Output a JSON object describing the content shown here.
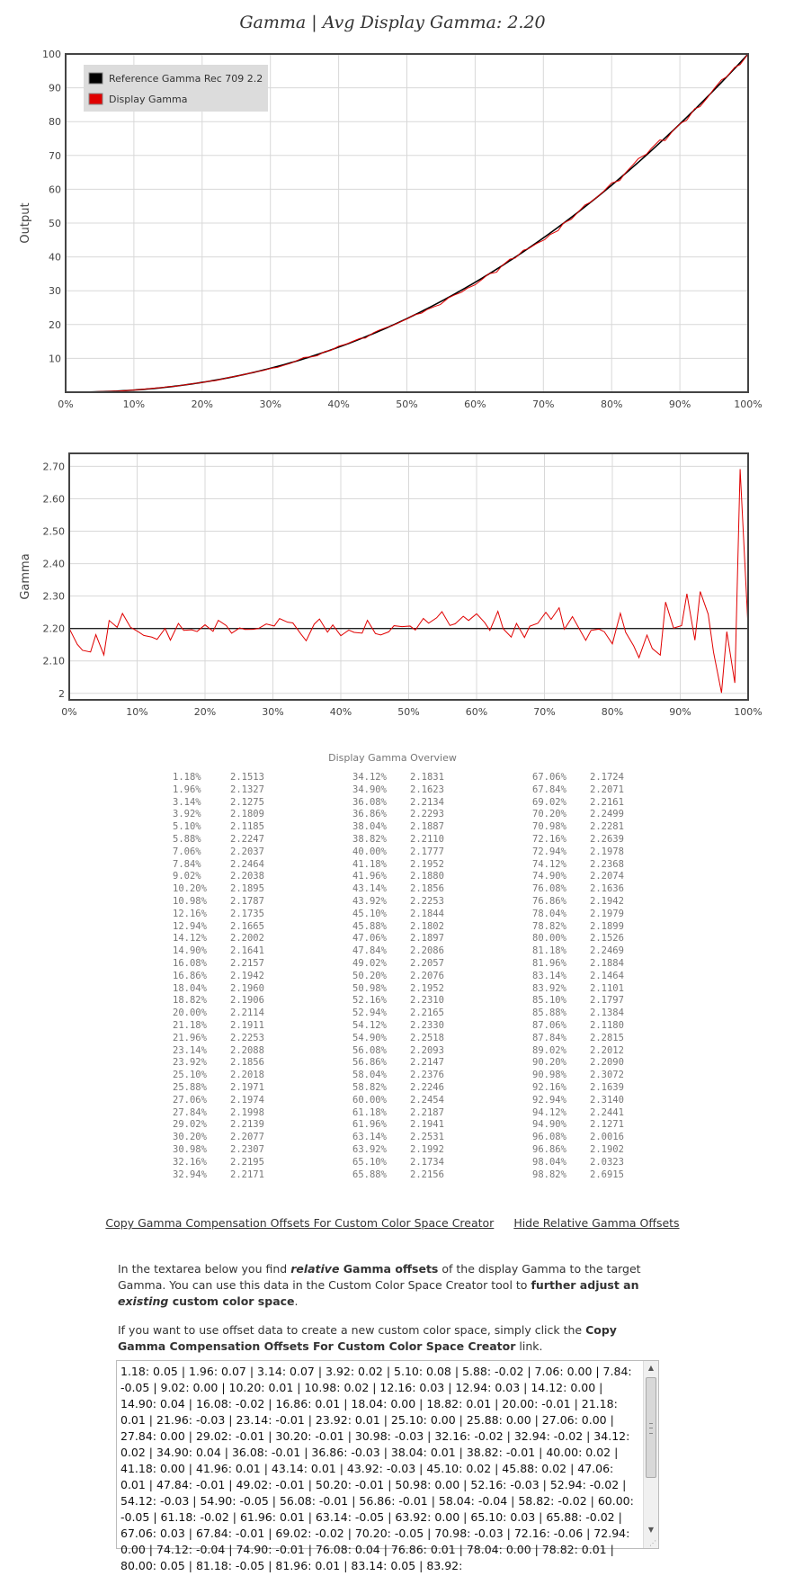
{
  "chart_data": [
    {
      "type": "line",
      "title": "Gamma | Avg Display Gamma: 2.20",
      "xlabel": "",
      "ylabel": "Output",
      "x_ticks": [
        "0%",
        "10%",
        "20%",
        "30%",
        "40%",
        "50%",
        "60%",
        "70%",
        "80%",
        "90%",
        "100%"
      ],
      "y_ticks": [
        "10",
        "20",
        "30",
        "40",
        "50",
        "60",
        "70",
        "80",
        "90",
        "100"
      ],
      "xlim": [
        0,
        100
      ],
      "ylim": [
        0,
        100
      ],
      "grid": true,
      "legend_position": "top-left",
      "series": [
        {
          "name": "Reference Gamma Rec 709 2.2",
          "color": "#000000",
          "function": "100*(x/100)^2.2"
        },
        {
          "name": "Display Gamma",
          "color": "#e00000",
          "source": "gamma_overview"
        }
      ]
    },
    {
      "type": "line",
      "xlabel": "",
      "ylabel": "Gamma",
      "x_ticks": [
        "0%",
        "10%",
        "20%",
        "30%",
        "40%",
        "50%",
        "60%",
        "70%",
        "80%",
        "90%",
        "100%"
      ],
      "y_ticks": [
        "2",
        "2.10",
        "2.20",
        "2.30",
        "2.40",
        "2.50",
        "2.60",
        "2.70"
      ],
      "xlim": [
        0,
        100
      ],
      "ylim": [
        1.98,
        2.74
      ],
      "reference_line": 2.2,
      "grid": true,
      "series": [
        {
          "color": "#e00000",
          "source": "gamma_overview",
          "start": [
            0,
            2.2
          ],
          "end": [
            100,
            2.2
          ]
        }
      ]
    }
  ],
  "overview": {
    "title": "Display Gamma Overview",
    "rows": [
      [
        "1.18%",
        "2.1513"
      ],
      [
        "1.96%",
        "2.1327"
      ],
      [
        "3.14%",
        "2.1275"
      ],
      [
        "3.92%",
        "2.1809"
      ],
      [
        "5.10%",
        "2.1185"
      ],
      [
        "5.88%",
        "2.2247"
      ],
      [
        "7.06%",
        "2.2037"
      ],
      [
        "7.84%",
        "2.2464"
      ],
      [
        "9.02%",
        "2.2038"
      ],
      [
        "10.20%",
        "2.1895"
      ],
      [
        "10.98%",
        "2.1787"
      ],
      [
        "12.16%",
        "2.1735"
      ],
      [
        "12.94%",
        "2.1665"
      ],
      [
        "14.12%",
        "2.2002"
      ],
      [
        "14.90%",
        "2.1641"
      ],
      [
        "16.08%",
        "2.2157"
      ],
      [
        "16.86%",
        "2.1942"
      ],
      [
        "18.04%",
        "2.1960"
      ],
      [
        "18.82%",
        "2.1906"
      ],
      [
        "20.00%",
        "2.2114"
      ],
      [
        "21.18%",
        "2.1911"
      ],
      [
        "21.96%",
        "2.2253"
      ],
      [
        "23.14%",
        "2.2088"
      ],
      [
        "23.92%",
        "2.1856"
      ],
      [
        "25.10%",
        "2.2018"
      ],
      [
        "25.88%",
        "2.1971"
      ],
      [
        "27.06%",
        "2.1974"
      ],
      [
        "27.84%",
        "2.1998"
      ],
      [
        "29.02%",
        "2.2139"
      ],
      [
        "30.20%",
        "2.2077"
      ],
      [
        "30.98%",
        "2.2307"
      ],
      [
        "32.16%",
        "2.2195"
      ],
      [
        "32.94%",
        "2.2171"
      ],
      [
        "34.12%",
        "2.1831"
      ],
      [
        "34.90%",
        "2.1623"
      ],
      [
        "36.08%",
        "2.2134"
      ],
      [
        "36.86%",
        "2.2293"
      ],
      [
        "38.04%",
        "2.1887"
      ],
      [
        "38.82%",
        "2.2110"
      ],
      [
        "40.00%",
        "2.1777"
      ],
      [
        "41.18%",
        "2.1952"
      ],
      [
        "41.96%",
        "2.1880"
      ],
      [
        "43.14%",
        "2.1856"
      ],
      [
        "43.92%",
        "2.2253"
      ],
      [
        "45.10%",
        "2.1844"
      ],
      [
        "45.88%",
        "2.1802"
      ],
      [
        "47.06%",
        "2.1897"
      ],
      [
        "47.84%",
        "2.2086"
      ],
      [
        "49.02%",
        "2.2057"
      ],
      [
        "50.20%",
        "2.2076"
      ],
      [
        "50.98%",
        "2.1952"
      ],
      [
        "52.16%",
        "2.2310"
      ],
      [
        "52.94%",
        "2.2165"
      ],
      [
        "54.12%",
        "2.2330"
      ],
      [
        "54.90%",
        "2.2518"
      ],
      [
        "56.08%",
        "2.2093"
      ],
      [
        "56.86%",
        "2.2147"
      ],
      [
        "58.04%",
        "2.2376"
      ],
      [
        "58.82%",
        "2.2246"
      ],
      [
        "60.00%",
        "2.2454"
      ],
      [
        "61.18%",
        "2.2187"
      ],
      [
        "61.96%",
        "2.1941"
      ],
      [
        "63.14%",
        "2.2531"
      ],
      [
        "63.92%",
        "2.1992"
      ],
      [
        "65.10%",
        "2.1734"
      ],
      [
        "65.88%",
        "2.2156"
      ],
      [
        "67.06%",
        "2.1724"
      ],
      [
        "67.84%",
        "2.2071"
      ],
      [
        "69.02%",
        "2.2161"
      ],
      [
        "70.20%",
        "2.2499"
      ],
      [
        "70.98%",
        "2.2281"
      ],
      [
        "72.16%",
        "2.2639"
      ],
      [
        "72.94%",
        "2.1978"
      ],
      [
        "74.12%",
        "2.2368"
      ],
      [
        "74.90%",
        "2.2074"
      ],
      [
        "76.08%",
        "2.1636"
      ],
      [
        "76.86%",
        "2.1942"
      ],
      [
        "78.04%",
        "2.1979"
      ],
      [
        "78.82%",
        "2.1899"
      ],
      [
        "80.00%",
        "2.1526"
      ],
      [
        "81.18%",
        "2.2469"
      ],
      [
        "81.96%",
        "2.1884"
      ],
      [
        "83.14%",
        "2.1464"
      ],
      [
        "83.92%",
        "2.1101"
      ],
      [
        "85.10%",
        "2.1797"
      ],
      [
        "85.88%",
        "2.1384"
      ],
      [
        "87.06%",
        "2.1180"
      ],
      [
        "87.84%",
        "2.2815"
      ],
      [
        "89.02%",
        "2.2012"
      ],
      [
        "90.20%",
        "2.2090"
      ],
      [
        "90.98%",
        "2.3072"
      ],
      [
        "92.16%",
        "2.1639"
      ],
      [
        "92.94%",
        "2.3140"
      ],
      [
        "94.12%",
        "2.2441"
      ],
      [
        "94.90%",
        "2.1271"
      ],
      [
        "96.08%",
        "2.0016"
      ],
      [
        "96.86%",
        "2.1902"
      ],
      [
        "98.04%",
        "2.0323"
      ],
      [
        "98.82%",
        "2.6915"
      ]
    ]
  },
  "links": {
    "copy": "Copy Gamma Compensation Offsets For Custom Color Space Creator",
    "hide": "Hide Relative Gamma Offsets"
  },
  "info": {
    "p1_a": "In the textarea below you find ",
    "p1_b": "relative",
    "p1_c": " Gamma offsets",
    "p1_d": " of the display Gamma to the target Gamma. You can use this data in the Custom Color Space Creator tool to ",
    "p1_e": "further adjust an ",
    "p1_f": "existing",
    "p1_g": " custom color space",
    "p1_h": ".",
    "p2_a": "If you want to use offset data to create a new custom color space, simply click the ",
    "p2_b": "Copy Gamma Compensation Offsets For Custom Color Space Creator",
    "p2_c": " link."
  },
  "offsets_text": "1.18: 0.05 | 1.96: 0.07 | 3.14: 0.07 | 3.92: 0.02 | 5.10: 0.08 | 5.88: -0.02 | 7.06: 0.00 | 7.84: -0.05 | 9.02: 0.00 | 10.20: 0.01 | 10.98: 0.02 | 12.16: 0.03 | 12.94: 0.03 | 14.12: 0.00 | 14.90: 0.04 | 16.08: -0.02 | 16.86: 0.01 | 18.04: 0.00 | 18.82: 0.01 | 20.00: -0.01 | 21.18: 0.01 | 21.96: -0.03 | 23.14: -0.01 | 23.92: 0.01 | 25.10: 0.00 | 25.88: 0.00 | 27.06: 0.00 | 27.84: 0.00 | 29.02: -0.01 | 30.20: -0.01 | 30.98: -0.03 | 32.16: -0.02 | 32.94: -0.02 | 34.12: 0.02 | 34.90: 0.04 | 36.08: -0.01 | 36.86: -0.03 | 38.04: 0.01 | 38.82: -0.01 | 40.00: 0.02 | 41.18: 0.00 | 41.96: 0.01 | 43.14: 0.01 | 43.92: -0.03 | 45.10: 0.02 | 45.88: 0.02 | 47.06: 0.01 | 47.84: -0.01 | 49.02: -0.01 | 50.20: -0.01 | 50.98: 0.00 | 52.16: -0.03 | 52.94: -0.02 | 54.12: -0.03 | 54.90: -0.05 | 56.08: -0.01 | 56.86: -0.01 | 58.04: -0.04 | 58.82: -0.02 | 60.00: -0.05 | 61.18: -0.02 | 61.96: 0.01 | 63.14: -0.05 | 63.92: 0.00 | 65.10: 0.03 | 65.88: -0.02 | 67.06: 0.03 | 67.84: -0.01 | 69.02: -0.02 | 70.20: -0.05 | 70.98: -0.03 | 72.16: -0.06 | 72.94: 0.00 | 74.12: -0.04 | 74.90: -0.01 | 76.08: 0.04 | 76.86: 0.01 | 78.04: 0.00 | 78.82: 0.01 | 80.00: 0.05 | 81.18: -0.05 | 81.96: 0.01 | 83.14: 0.05 | 83.92:"
}
